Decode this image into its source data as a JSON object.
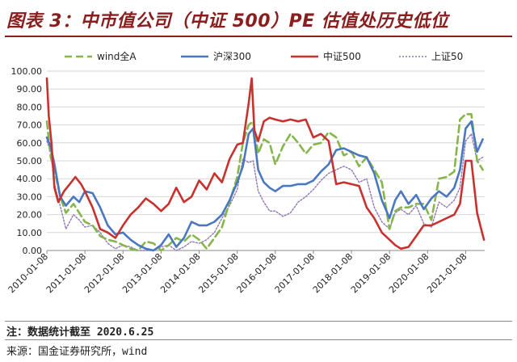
{
  "header": {
    "title": "图表 3：中市值公司（中证 500）PE 估值处历史低位"
  },
  "colors": {
    "wind_all_a": "#86b64a",
    "hs300": "#4a78c0",
    "zz500": "#c8312d",
    "sz50": "#8f77b5",
    "title": "#8a1d1d"
  },
  "chart_data": {
    "type": "line",
    "title": "中市值公司（中证 500）PE 估值处历史低位",
    "xlabel": "",
    "ylabel": "",
    "ylim": [
      0,
      100
    ],
    "y_ticks": [
      "0.00",
      "10.00",
      "20.00",
      "30.00",
      "40.00",
      "50.00",
      "60.00",
      "70.00",
      "80.00",
      "90.00",
      "100.00"
    ],
    "x_range": [
      2010.0,
      2021.5
    ],
    "x_tick_labels": [
      "2010-01-08",
      "2011-01-08",
      "2012-01-08",
      "2013-01-08",
      "2014-01-08",
      "2015-01-08",
      "2016-01-08",
      "2017-01-08",
      "2018-01-08",
      "2019-01-08",
      "2020-01-08",
      "2021-01-08"
    ],
    "x_tick_positions": [
      2010,
      2011,
      2012,
      2013,
      2014,
      2015,
      2016,
      2017,
      2018,
      2019,
      2020,
      2021
    ],
    "legend_placement": "top",
    "series": [
      {
        "name": "wind全A",
        "style": "dashed",
        "x": [
          2010.0,
          2010.1,
          2010.2,
          2010.35,
          2010.5,
          2010.7,
          2010.85,
          2011.0,
          2011.2,
          2011.4,
          2011.6,
          2011.8,
          2012.0,
          2012.2,
          2012.4,
          2012.6,
          2012.8,
          2013.0,
          2013.2,
          2013.4,
          2013.6,
          2013.8,
          2014.0,
          2014.2,
          2014.4,
          2014.6,
          2014.8,
          2015.0,
          2015.15,
          2015.3,
          2015.42,
          2015.55,
          2015.7,
          2015.85,
          2016.0,
          2016.2,
          2016.4,
          2016.6,
          2016.8,
          2017.0,
          2017.2,
          2017.4,
          2017.6,
          2017.8,
          2018.0,
          2018.2,
          2018.4,
          2018.6,
          2018.8,
          2019.0,
          2019.15,
          2019.3,
          2019.5,
          2019.7,
          2019.9,
          2020.1,
          2020.3,
          2020.5,
          2020.7,
          2020.85,
          2021.0,
          2021.15,
          2021.3,
          2021.45
        ],
        "values": [
          72,
          52,
          45,
          30,
          21,
          26,
          21,
          16,
          14,
          8,
          6,
          5,
          3,
          1,
          0,
          5,
          4,
          0,
          3,
          7,
          5,
          9,
          6,
          1,
          7,
          13,
          27,
          41,
          60,
          70,
          72,
          54,
          62,
          60,
          48,
          58,
          65,
          60,
          54,
          59,
          60,
          66,
          63,
          53,
          55,
          47,
          52,
          45,
          38,
          12,
          22,
          24,
          24,
          26,
          26,
          17,
          40,
          41,
          44,
          73,
          76,
          76,
          50,
          45
        ]
      },
      {
        "name": "沪深300",
        "style": "solid",
        "x": [
          2010.0,
          2010.1,
          2010.2,
          2010.35,
          2010.5,
          2010.7,
          2010.85,
          2011.0,
          2011.2,
          2011.4,
          2011.6,
          2011.8,
          2012.0,
          2012.2,
          2012.4,
          2012.6,
          2012.8,
          2013.0,
          2013.2,
          2013.4,
          2013.6,
          2013.8,
          2014.0,
          2014.2,
          2014.4,
          2014.6,
          2014.8,
          2015.0,
          2015.15,
          2015.3,
          2015.42,
          2015.55,
          2015.7,
          2015.85,
          2016.0,
          2016.2,
          2016.4,
          2016.6,
          2016.8,
          2017.0,
          2017.2,
          2017.4,
          2017.6,
          2017.8,
          2018.0,
          2018.2,
          2018.4,
          2018.6,
          2018.8,
          2019.0,
          2019.15,
          2019.3,
          2019.5,
          2019.7,
          2019.9,
          2020.1,
          2020.3,
          2020.5,
          2020.7,
          2020.85,
          2021.0,
          2021.15,
          2021.3,
          2021.45
        ],
        "values": [
          63,
          58,
          48,
          30,
          25,
          30,
          27,
          33,
          32,
          24,
          14,
          9,
          10,
          6,
          3,
          1,
          0,
          3,
          9,
          2,
          7,
          16,
          14,
          14,
          16,
          20,
          28,
          38,
          47,
          65,
          68,
          45,
          38,
          35,
          33,
          36,
          36,
          37,
          37,
          39,
          44,
          48,
          56,
          57,
          55,
          53,
          52,
          43,
          28,
          18,
          28,
          33,
          26,
          31,
          23,
          29,
          33,
          30,
          35,
          45,
          68,
          72,
          55,
          62
        ]
      },
      {
        "name": "中证500",
        "style": "solid",
        "x": [
          2010.0,
          2010.05,
          2010.12,
          2010.2,
          2010.3,
          2010.45,
          2010.6,
          2010.75,
          2010.9,
          2011.0,
          2011.2,
          2011.4,
          2011.6,
          2011.8,
          2012.0,
          2012.2,
          2012.4,
          2012.6,
          2012.8,
          2013.0,
          2013.2,
          2013.4,
          2013.6,
          2013.8,
          2014.0,
          2014.2,
          2014.4,
          2014.6,
          2014.8,
          2015.0,
          2015.15,
          2015.3,
          2015.38,
          2015.45,
          2015.55,
          2015.7,
          2015.85,
          2016.0,
          2016.2,
          2016.4,
          2016.6,
          2016.8,
          2017.0,
          2017.2,
          2017.4,
          2017.6,
          2017.8,
          2018.0,
          2018.2,
          2018.4,
          2018.6,
          2018.8,
          2019.0,
          2019.15,
          2019.3,
          2019.5,
          2019.7,
          2019.9,
          2020.1,
          2020.3,
          2020.5,
          2020.7,
          2020.85,
          2021.0,
          2021.15,
          2021.3,
          2021.42,
          2021.48
        ],
        "values": [
          96,
          75,
          60,
          35,
          27,
          33,
          37,
          41,
          37,
          33,
          24,
          12,
          10,
          7,
          14,
          20,
          24,
          29,
          26,
          22,
          26,
          35,
          27,
          30,
          39,
          34,
          43,
          38,
          51,
          59,
          60,
          82,
          96,
          67,
          61,
          72,
          74,
          73,
          72,
          73,
          72,
          73,
          63,
          65,
          61,
          37,
          38,
          37,
          36,
          24,
          18,
          10,
          6,
          3,
          1,
          2,
          8,
          14,
          14,
          16,
          18,
          20,
          26,
          50,
          50,
          21,
          11,
          6
        ]
      },
      {
        "name": "上证50",
        "style": "dotted",
        "x": [
          2010.0,
          2010.1,
          2010.2,
          2010.35,
          2010.5,
          2010.7,
          2010.85,
          2011.0,
          2011.2,
          2011.4,
          2011.6,
          2011.8,
          2012.0,
          2012.2,
          2012.4,
          2012.6,
          2012.8,
          2013.0,
          2013.2,
          2013.4,
          2013.6,
          2013.8,
          2014.0,
          2014.2,
          2014.4,
          2014.6,
          2014.8,
          2015.0,
          2015.15,
          2015.3,
          2015.42,
          2015.55,
          2015.7,
          2015.85,
          2016.0,
          2016.2,
          2016.4,
          2016.6,
          2016.8,
          2017.0,
          2017.2,
          2017.4,
          2017.6,
          2017.8,
          2018.0,
          2018.2,
          2018.4,
          2018.6,
          2018.8,
          2019.0,
          2019.15,
          2019.3,
          2019.5,
          2019.7,
          2019.9,
          2020.1,
          2020.3,
          2020.5,
          2020.7,
          2020.85,
          2021.0,
          2021.15,
          2021.3,
          2021.45
        ],
        "values": [
          61,
          55,
          37,
          25,
          12,
          20,
          17,
          13,
          14,
          10,
          4,
          1,
          3,
          2,
          0,
          0,
          0,
          2,
          3,
          0,
          2,
          5,
          4,
          6,
          10,
          18,
          25,
          34,
          51,
          49,
          50,
          33,
          27,
          22,
          22,
          19,
          21,
          27,
          30,
          34,
          39,
          43,
          45,
          47,
          45,
          38,
          40,
          24,
          16,
          12,
          21,
          23,
          20,
          25,
          15,
          13,
          27,
          24,
          28,
          35,
          61,
          65,
          50,
          52
        ]
      }
    ]
  },
  "footer": {
    "note": "注：数据统计截至 2020.6.25",
    "source": "来源：国金证券研究所，wind"
  }
}
